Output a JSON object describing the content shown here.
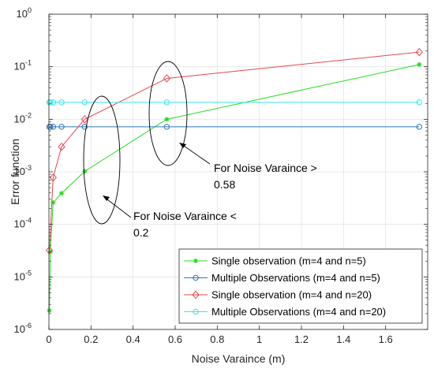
{
  "chart_data": {
    "type": "line",
    "title": "",
    "xlabel": "Noise Varaince (m)",
    "ylabel": "Error function",
    "xlim": [
      0,
      1.8
    ],
    "ylim": [
      1e-06,
      1
    ],
    "yscale": "log",
    "grid": true,
    "x_ticks": [
      "0",
      "0.2",
      "0.4",
      "0.6",
      "0.8",
      "1",
      "1.2",
      "1.4",
      "1.6"
    ],
    "x_tick_values": [
      0,
      0.2,
      0.4,
      0.6,
      0.8,
      1,
      1.2,
      1.4,
      1.6
    ],
    "y_ticks": [
      {
        "base": "10",
        "exp": "-6",
        "value": 1e-06
      },
      {
        "base": "10",
        "exp": "-5",
        "value": 1e-05
      },
      {
        "base": "10",
        "exp": "-4",
        "value": 0.0001
      },
      {
        "base": "10",
        "exp": "-3",
        "value": 0.001
      },
      {
        "base": "10",
        "exp": "-2",
        "value": 0.01
      },
      {
        "base": "10",
        "exp": "-1",
        "value": 0.1
      },
      {
        "base": "10",
        "exp": "0",
        "value": 1
      }
    ],
    "series": [
      {
        "name": "Single observation (m=4 and n=5)",
        "color": "#22dd22",
        "marker": "star",
        "x": [
          0.002,
          0.007,
          0.02,
          0.06,
          0.17,
          0.56,
          1.76
        ],
        "y": [
          2.3e-06,
          3e-05,
          0.00026,
          0.00039,
          0.00102,
          0.01,
          0.11
        ]
      },
      {
        "name": "Multiple Observations (m=4 and n=5)",
        "color": "#2f76b9",
        "marker": "circle",
        "x": [
          0.002,
          0.007,
          0.02,
          0.06,
          0.17,
          0.56,
          1.76
        ],
        "y": [
          0.0072,
          0.0072,
          0.0072,
          0.0072,
          0.0072,
          0.0072,
          0.0072
        ]
      },
      {
        "name": "Single observation (m=4 and n=20)",
        "color": "#e8474a",
        "marker": "diamond",
        "x": [
          0.002,
          0.02,
          0.06,
          0.17,
          0.56,
          1.76
        ],
        "y": [
          3.2e-05,
          0.00078,
          0.003,
          0.01,
          0.06,
          0.19
        ]
      },
      {
        "name": "Multiple Observations (m=4 and n=20)",
        "color": "#3ce6e6",
        "marker": "circle",
        "x": [
          0.002,
          0.007,
          0.02,
          0.06,
          0.17,
          0.56,
          1.76
        ],
        "y": [
          0.021,
          0.021,
          0.021,
          0.021,
          0.021,
          0.021,
          0.021
        ]
      }
    ],
    "annotations": [
      {
        "line1": "For Noise Varaince <",
        "line2": "0.2"
      },
      {
        "line1": "For Noise Varaince >",
        "line2": "0.58"
      }
    ]
  }
}
